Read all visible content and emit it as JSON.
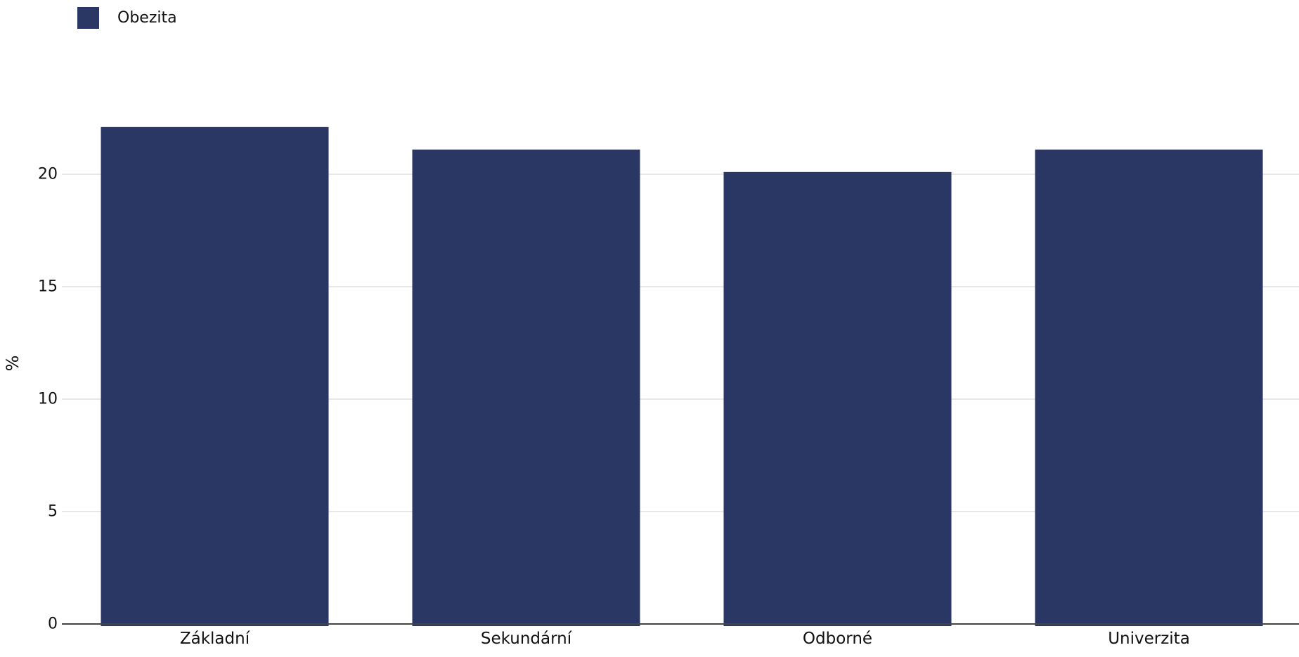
{
  "chart_data": {
    "type": "bar",
    "categories": [
      "Základní",
      "Sekundární",
      "Odborné",
      "Univerzita"
    ],
    "series": [
      {
        "name": "Obezita",
        "values": [
          22.1,
          21.1,
          20.1,
          21.1
        ],
        "color": "#2a3664"
      }
    ],
    "ylabel": "%",
    "yticks": [
      0,
      5,
      10,
      15,
      20
    ],
    "ylim": [
      0,
      23
    ],
    "grid": true,
    "legend_position": "top-left"
  }
}
